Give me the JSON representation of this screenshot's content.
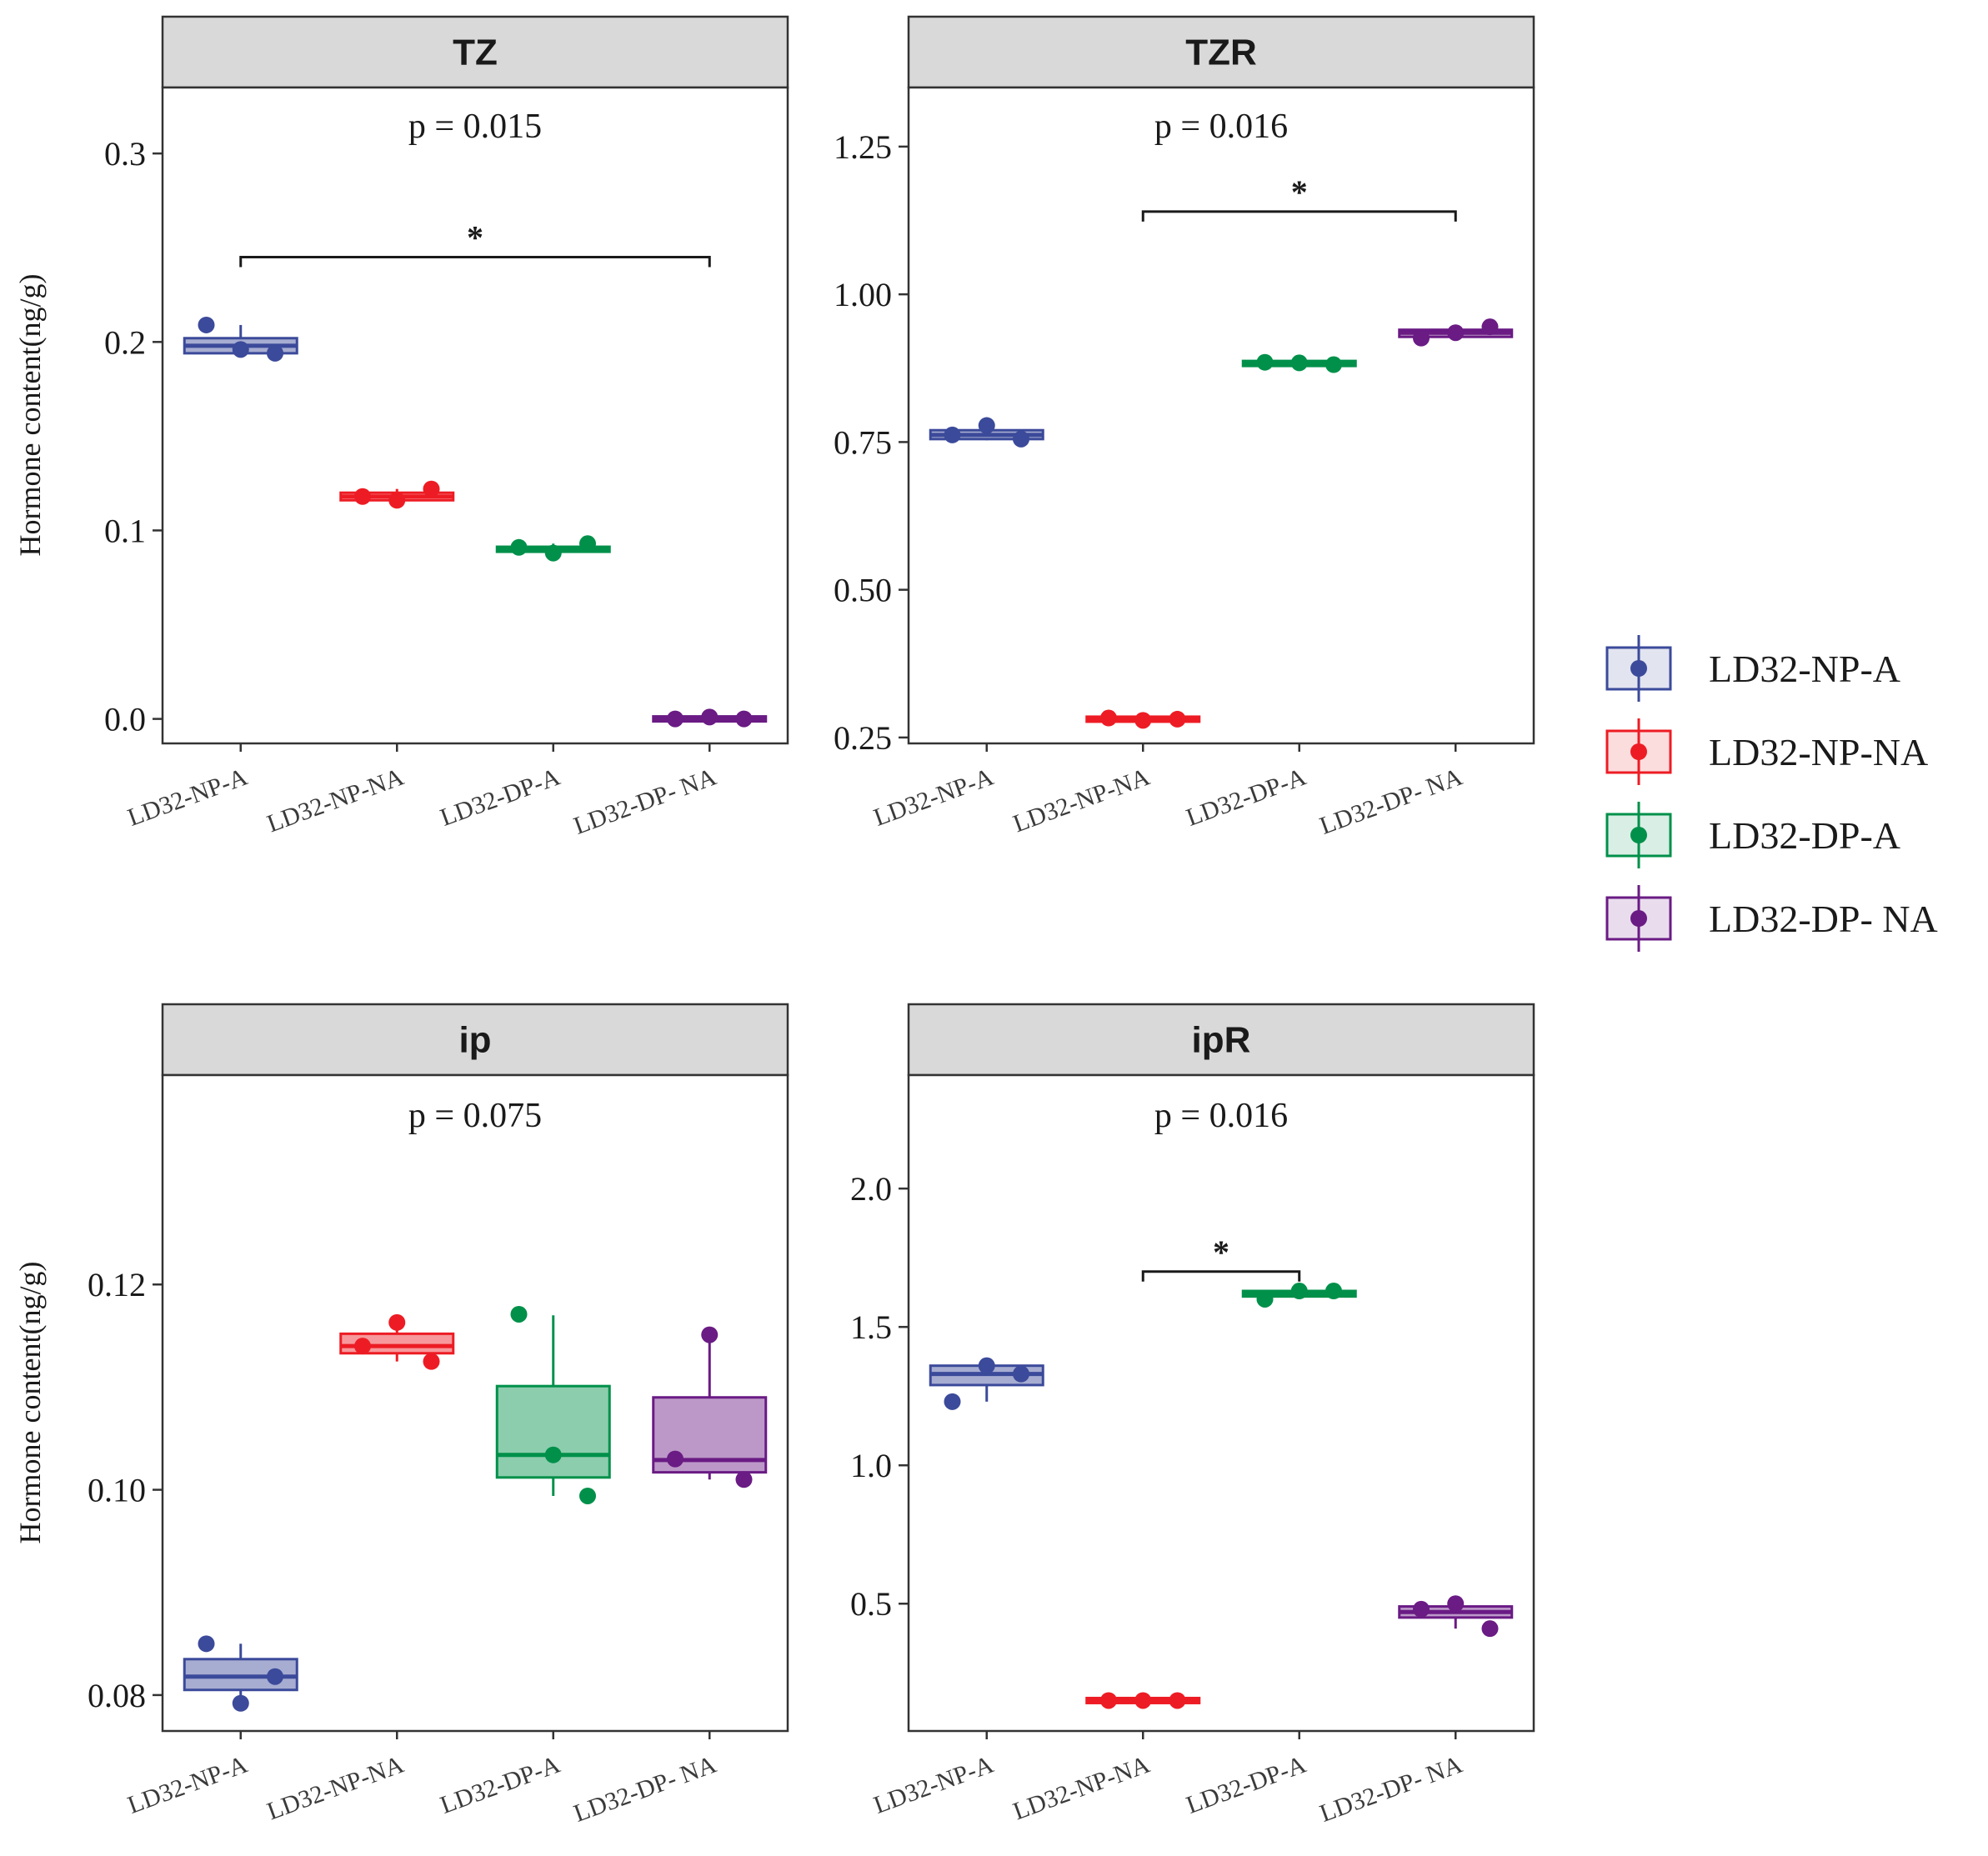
{
  "chart_data": {
    "type": "box",
    "ylabel": "Hormone content(ng/g)",
    "categories": [
      "LD32-NP-A",
      "LD32-NP-NA",
      "LD32-DP-A",
      "LD32-DP- NA"
    ],
    "colors": [
      "#3b4a9a",
      "#ed1c24",
      "#00904a",
      "#6a1b84"
    ],
    "legend": {
      "position": "right",
      "entries": [
        "LD32-NP-A",
        "LD32-NP-NA",
        "LD32-DP-A",
        "LD32-DP- NA"
      ]
    },
    "panels": [
      {
        "title": "TZ",
        "p_label": "p = 0.015",
        "ylim": [
          -0.013,
          0.335
        ],
        "yticks": [
          0.0,
          0.1,
          0.2,
          0.3
        ],
        "ytick_labels": [
          "0.0",
          "0.1",
          "0.2",
          "0.3"
        ],
        "groups": [
          {
            "q1": 0.194,
            "median": 0.198,
            "q3": 0.202,
            "whisker_low": 0.193,
            "whisker_high": 0.209,
            "points": [
              0.209,
              0.196,
              0.194
            ]
          },
          {
            "q1": 0.116,
            "median": 0.118,
            "q3": 0.12,
            "whisker_low": 0.116,
            "whisker_high": 0.122,
            "points": [
              0.118,
              0.116,
              0.122
            ]
          },
          {
            "q1": 0.089,
            "median": 0.09,
            "q3": 0.091,
            "whisker_low": 0.088,
            "whisker_high": 0.093,
            "points": [
              0.091,
              0.088,
              0.093
            ]
          },
          {
            "q1": -0.001,
            "median": 0.0,
            "q3": 0.001,
            "whisker_low": -0.001,
            "whisker_high": 0.001,
            "points": [
              0.0,
              0.001,
              0.0
            ]
          }
        ],
        "comparisons": [
          {
            "from": 0,
            "to": 3,
            "y": 0.245,
            "label": "*"
          }
        ]
      },
      {
        "title": "TZR",
        "p_label": "p = 0.016",
        "ylim": [
          0.24,
          1.35
        ],
        "yticks": [
          0.25,
          0.5,
          0.75,
          1.0,
          1.25
        ],
        "ytick_labels": [
          "0.25",
          "0.50",
          "0.75",
          "1.00",
          "1.25"
        ],
        "groups": [
          {
            "q1": 0.755,
            "median": 0.762,
            "q3": 0.77,
            "whisker_low": 0.753,
            "whisker_high": 0.778,
            "points": [
              0.762,
              0.778,
              0.755
            ]
          },
          {
            "q1": 0.278,
            "median": 0.281,
            "q3": 0.284,
            "whisker_low": 0.277,
            "whisker_high": 0.285,
            "points": [
              0.283,
              0.279,
              0.281
            ]
          },
          {
            "q1": 0.88,
            "median": 0.883,
            "q3": 0.886,
            "whisker_low": 0.879,
            "whisker_high": 0.886,
            "points": [
              0.885,
              0.884,
              0.881
            ]
          },
          {
            "q1": 0.928,
            "median": 0.935,
            "q3": 0.94,
            "whisker_low": 0.925,
            "whisker_high": 0.948,
            "points": [
              0.926,
              0.935,
              0.945
            ]
          }
        ],
        "comparisons": [
          {
            "from": 1,
            "to": 3,
            "y": 1.14,
            "label": "*"
          }
        ]
      },
      {
        "title": "ip",
        "p_label": "p = 0.075",
        "ylim": [
          0.0765,
          0.1404
        ],
        "yticks": [
          0.08,
          0.1,
          0.12
        ],
        "ytick_labels": [
          "0.08",
          "0.10",
          "0.12"
        ],
        "groups": [
          {
            "q1": 0.0805,
            "median": 0.0818,
            "q3": 0.0835,
            "whisker_low": 0.0792,
            "whisker_high": 0.085,
            "points": [
              0.085,
              0.0792,
              0.0818
            ]
          },
          {
            "q1": 0.1133,
            "median": 0.114,
            "q3": 0.1152,
            "whisker_low": 0.1125,
            "whisker_high": 0.1163,
            "points": [
              0.114,
              0.1163,
              0.1125
            ]
          },
          {
            "q1": 0.1012,
            "median": 0.1034,
            "q3": 0.1101,
            "whisker_low": 0.0994,
            "whisker_high": 0.117,
            "points": [
              0.1171,
              0.1034,
              0.0994
            ]
          },
          {
            "q1": 0.1017,
            "median": 0.1029,
            "q3": 0.109,
            "whisker_low": 0.101,
            "whisker_high": 0.115,
            "points": [
              0.103,
              0.1151,
              0.101
            ]
          }
        ],
        "comparisons": []
      },
      {
        "title": "ipR",
        "p_label": "p = 0.016",
        "ylim": [
          0.04,
          2.41
        ],
        "yticks": [
          0.5,
          1.0,
          1.5,
          2.0
        ],
        "ytick_labels": [
          "0.5",
          "1.0",
          "1.5",
          "2.0"
        ],
        "groups": [
          {
            "q1": 1.29,
            "median": 1.33,
            "q3": 1.36,
            "whisker_low": 1.23,
            "whisker_high": 1.37,
            "points": [
              1.23,
              1.36,
              1.33
            ]
          },
          {
            "q1": 0.15,
            "median": 0.15,
            "q3": 0.15,
            "whisker_low": 0.15,
            "whisker_high": 0.15,
            "points": [
              0.15,
              0.15,
              0.15
            ]
          },
          {
            "q1": 1.61,
            "median": 1.62,
            "q3": 1.63,
            "whisker_low": 1.6,
            "whisker_high": 1.63,
            "points": [
              1.6,
              1.63,
              1.63
            ]
          },
          {
            "q1": 0.45,
            "median": 0.47,
            "q3": 0.49,
            "whisker_low": 0.41,
            "whisker_high": 0.5,
            "points": [
              0.48,
              0.5,
              0.41
            ]
          }
        ],
        "comparisons": [
          {
            "from": 1,
            "to": 2,
            "y": 1.7,
            "label": "*"
          }
        ]
      }
    ]
  }
}
